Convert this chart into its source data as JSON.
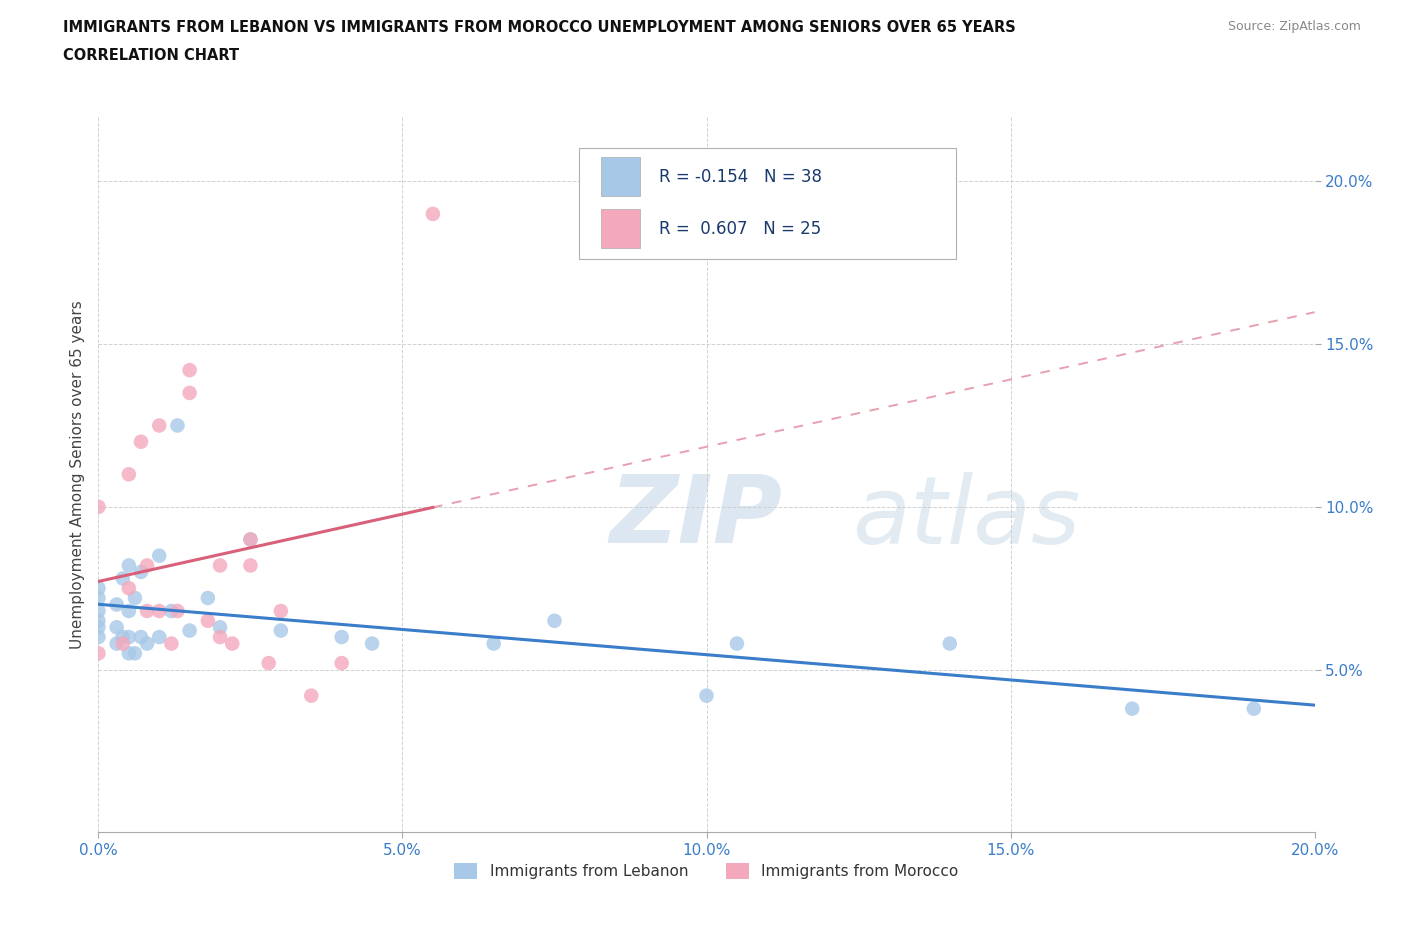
{
  "title_line1": "IMMIGRANTS FROM LEBANON VS IMMIGRANTS FROM MOROCCO UNEMPLOYMENT AMONG SENIORS OVER 65 YEARS",
  "title_line2": "CORRELATION CHART",
  "source": "Source: ZipAtlas.com",
  "ylabel": "Unemployment Among Seniors over 65 years",
  "xlim": [
    0.0,
    0.2
  ],
  "ylim": [
    0.0,
    0.22
  ],
  "xtick_labels": [
    "0.0%",
    "5.0%",
    "10.0%",
    "15.0%",
    "20.0%"
  ],
  "xtick_vals": [
    0.0,
    0.05,
    0.1,
    0.15,
    0.2
  ],
  "ytick_labels": [
    "5.0%",
    "10.0%",
    "15.0%",
    "20.0%"
  ],
  "ytick_vals": [
    0.05,
    0.1,
    0.15,
    0.2
  ],
  "R_lebanon": -0.154,
  "N_lebanon": 38,
  "R_morocco": 0.607,
  "N_morocco": 25,
  "color_lebanon": "#a8c8e8",
  "color_morocco": "#f4a8bc",
  "trendline_lebanon_color": "#3a7dc9",
  "trendline_morocco_color": "#d9607a",
  "watermark_zip": "ZIP",
  "watermark_atlas": "atlas",
  "lebanon_x": [
    0.0,
    0.0,
    0.0,
    0.0,
    0.0,
    0.0,
    0.003,
    0.003,
    0.003,
    0.004,
    0.004,
    0.005,
    0.005,
    0.005,
    0.005,
    0.006,
    0.006,
    0.007,
    0.007,
    0.008,
    0.01,
    0.01,
    0.012,
    0.013,
    0.015,
    0.018,
    0.02,
    0.025,
    0.03,
    0.04,
    0.045,
    0.065,
    0.075,
    0.1,
    0.105,
    0.14,
    0.17,
    0.19
  ],
  "lebanon_y": [
    0.06,
    0.063,
    0.065,
    0.068,
    0.072,
    0.075,
    0.058,
    0.063,
    0.07,
    0.06,
    0.078,
    0.055,
    0.06,
    0.068,
    0.082,
    0.055,
    0.072,
    0.06,
    0.08,
    0.058,
    0.06,
    0.085,
    0.068,
    0.125,
    0.062,
    0.072,
    0.063,
    0.09,
    0.062,
    0.06,
    0.058,
    0.058,
    0.065,
    0.042,
    0.058,
    0.058,
    0.038,
    0.038
  ],
  "morocco_x": [
    0.0,
    0.0,
    0.004,
    0.005,
    0.005,
    0.007,
    0.008,
    0.008,
    0.01,
    0.01,
    0.012,
    0.013,
    0.015,
    0.015,
    0.018,
    0.02,
    0.02,
    0.022,
    0.025,
    0.025,
    0.028,
    0.03,
    0.035,
    0.04,
    0.055
  ],
  "morocco_y": [
    0.055,
    0.1,
    0.058,
    0.075,
    0.11,
    0.12,
    0.068,
    0.082,
    0.068,
    0.125,
    0.058,
    0.068,
    0.135,
    0.142,
    0.065,
    0.082,
    0.06,
    0.058,
    0.082,
    0.09,
    0.052,
    0.068,
    0.042,
    0.052,
    0.19
  ]
}
